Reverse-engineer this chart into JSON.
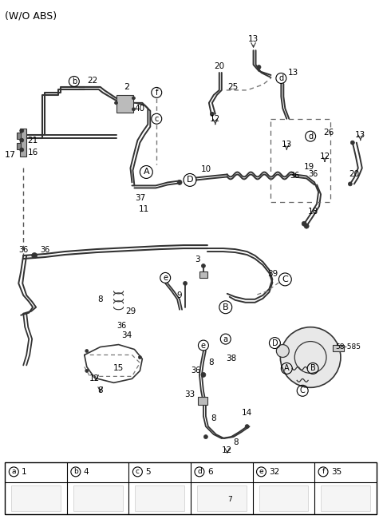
{
  "title": "(W/O ABS)",
  "bg_color": "#ffffff",
  "title_fontsize": 9,
  "title_color": "#000000",
  "line_color": "#333333",
  "text_color": "#000000",
  "table_border_color": "#000000",
  "table_header_labels": [
    "a",
    "b",
    "c",
    "d",
    "e",
    "f"
  ],
  "table_header_numbers": [
    "1",
    "4",
    "5",
    "6",
    "32",
    "35"
  ],
  "table_sub_numbers": [
    "",
    "",
    "",
    "7",
    "",
    ""
  ],
  "figsize": [
    4.8,
    6.55
  ],
  "dpi": 100
}
